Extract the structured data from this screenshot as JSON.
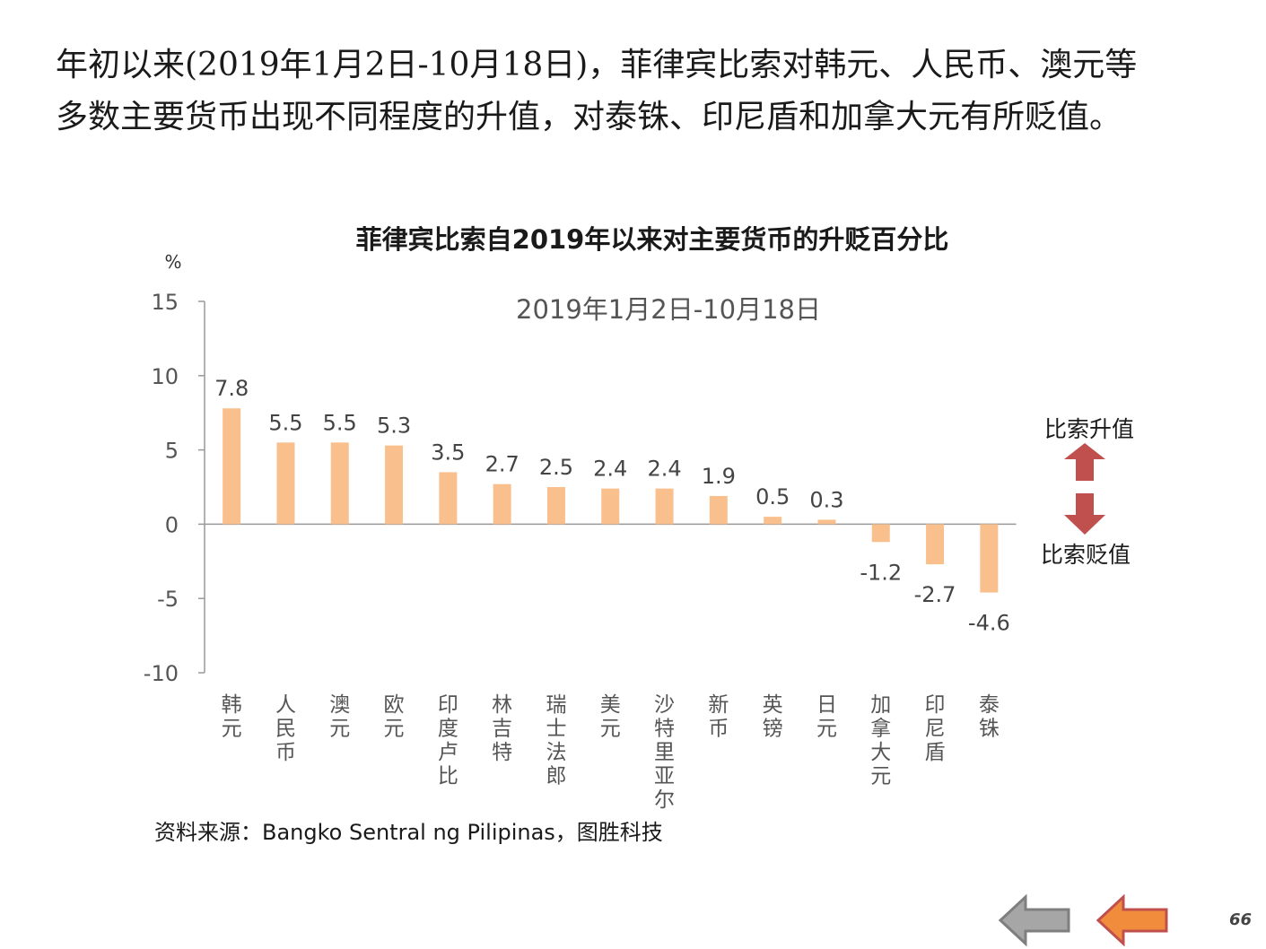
{
  "headline": {
    "line1": "年初以来(2019年1月2日-10月18日)，菲律宾比索对韩元、人民币、澳元等",
    "line2": "多数主要货币出现不同程度的升值，对泰铢、印尼盾和加拿大元有所贬值。"
  },
  "chart_data": {
    "type": "bar",
    "title": "菲律宾比索自2019年以来对主要货币的升贬百分比",
    "subtitle": "2019年1月2日-10月18日",
    "ylabel": "%",
    "ylim": [
      -10,
      15
    ],
    "yticks": [
      15,
      10,
      5,
      0,
      -5,
      -10
    ],
    "categories": [
      "韩元",
      "人民币",
      "澳元",
      "欧元",
      "印度卢比",
      "林吉特",
      "瑞士法郎",
      "美元",
      "沙特里亚尔",
      "新币",
      "英镑",
      "日元",
      "加拿大元",
      "印尼盾",
      "泰铢"
    ],
    "values": [
      7.8,
      5.5,
      5.5,
      5.3,
      3.5,
      2.7,
      2.5,
      2.4,
      2.4,
      1.9,
      0.5,
      0.3,
      -1.2,
      -2.7,
      -4.6
    ],
    "value_labels": [
      "7.8",
      "5.5",
      "5.5",
      "5.3",
      "3.5",
      "2.7",
      "2.5",
      "2.4",
      "2.4",
      "1.9",
      "0.5",
      "0.3",
      "-1.2",
      "-2.7",
      "-4.6"
    ],
    "bar_color": "#f9c08e",
    "axis_color": "#999999",
    "annotations": {
      "up_label": "比索升值",
      "down_label": "比索贬值",
      "arrow_color": "#c0504d"
    },
    "grid": false,
    "legend": "none"
  },
  "source": "资料来源：Bangko Sentral ng Pilipinas，图胜科技",
  "footer": {
    "page_number": "66",
    "back_arrow_color": "#a6a6a6",
    "forward_arrow_color": "#f08c3c",
    "back_icon": "arrow-left-icon",
    "forward_icon": "arrow-left-icon"
  }
}
